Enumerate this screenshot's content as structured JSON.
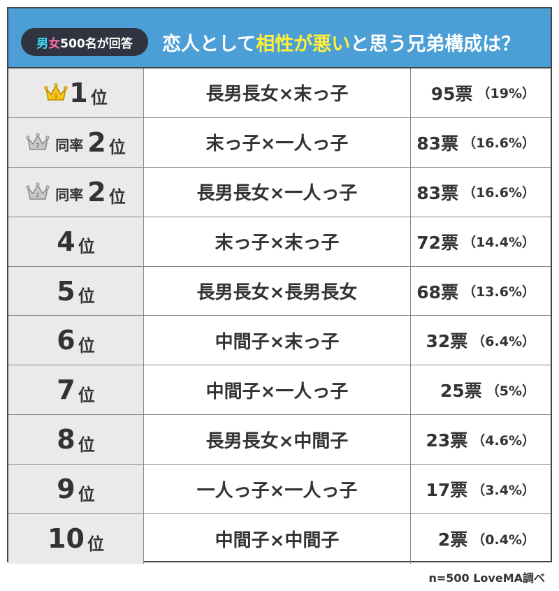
{
  "header": {
    "badge_male": "男",
    "badge_female": "女",
    "badge_rest": "500名が回答",
    "title_pre": "恋人として",
    "title_hl": "相性が悪い",
    "title_post": "と思う兄弟構成は？"
  },
  "chart_data": {
    "type": "table",
    "columns": [
      "rank",
      "combination",
      "votes",
      "percent"
    ],
    "rows": [
      {
        "rank_num": "1",
        "rank_suffix": "位",
        "tie": "",
        "crown": "gold",
        "crown_label": "1",
        "combination": "長男長女×末っ子",
        "votes": "95票",
        "percent": "（19%）"
      },
      {
        "rank_num": "2",
        "rank_suffix": "位",
        "tie": "同率",
        "crown": "silver",
        "crown_label": "2",
        "combination": "末っ子×一人っ子",
        "votes": "83票",
        "percent": "（16.6%）"
      },
      {
        "rank_num": "2",
        "rank_suffix": "位",
        "tie": "同率",
        "crown": "silver",
        "crown_label": "2",
        "combination": "長男長女×一人っ子",
        "votes": "83票",
        "percent": "（16.6%）"
      },
      {
        "rank_num": "4",
        "rank_suffix": "位",
        "tie": "",
        "crown": "",
        "crown_label": "",
        "combination": "末っ子×末っ子",
        "votes": "72票",
        "percent": "（14.4%）"
      },
      {
        "rank_num": "5",
        "rank_suffix": "位",
        "tie": "",
        "crown": "",
        "crown_label": "",
        "combination": "長男長女×長男長女",
        "votes": "68票",
        "percent": "（13.6%）"
      },
      {
        "rank_num": "6",
        "rank_suffix": "位",
        "tie": "",
        "crown": "",
        "crown_label": "",
        "combination": "中間子×末っ子",
        "votes": "32票",
        "percent": "（6.4%）"
      },
      {
        "rank_num": "7",
        "rank_suffix": "位",
        "tie": "",
        "crown": "",
        "crown_label": "",
        "combination": "中間子×一人っ子",
        "votes": "25票",
        "percent": "（5%）"
      },
      {
        "rank_num": "8",
        "rank_suffix": "位",
        "tie": "",
        "crown": "",
        "crown_label": "",
        "combination": "長男長女×中間子",
        "votes": "23票",
        "percent": "（4.6%）"
      },
      {
        "rank_num": "9",
        "rank_suffix": "位",
        "tie": "",
        "crown": "",
        "crown_label": "",
        "combination": "一人っ子×一人っ子",
        "votes": "17票",
        "percent": "（3.4%）"
      },
      {
        "rank_num": "10",
        "rank_suffix": "位",
        "tie": "",
        "crown": "",
        "crown_label": "",
        "combination": "中間子×中間子",
        "votes": "2票",
        "percent": "（0.4%）"
      }
    ]
  },
  "footer": {
    "source": "n=500  LoveMA調べ"
  },
  "colors": {
    "header_bg": "#4b9fd6",
    "highlight": "#ffef3a",
    "gold": "#f5c518",
    "silver": "#c8c8c8",
    "rank_cell_bg": "#eaeaea"
  }
}
